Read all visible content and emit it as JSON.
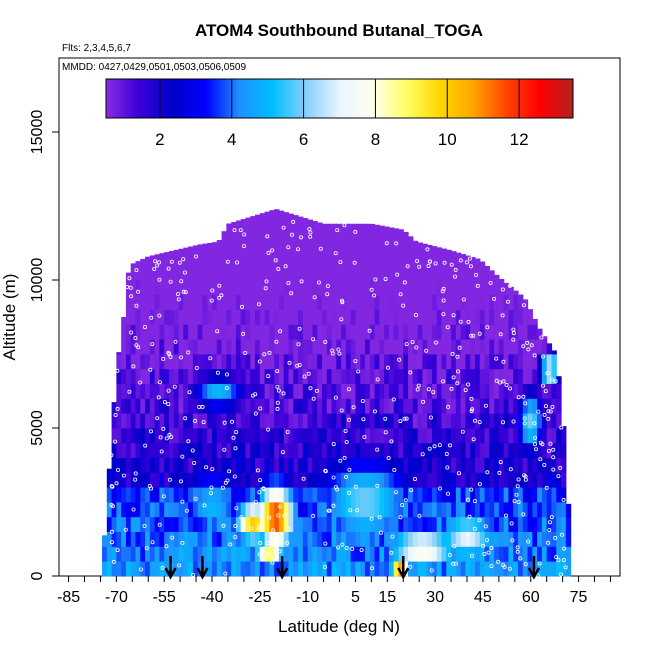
{
  "chart_data": {
    "type": "heatmap",
    "title": "ATOM4 Southbound Butanal_TOGA",
    "flights_note": "Flts: 2,3,4,5,6,7",
    "dates_note": "MMDD: 0427,0429,0501,0503,0506,0509",
    "xlabel": "Latitude (deg N)",
    "ylabel": "Altitude (m)",
    "xlim": [
      -88,
      88
    ],
    "ylim": [
      0,
      17500
    ],
    "x_ticks": [
      -85,
      -70,
      -55,
      -40,
      -25,
      -10,
      5,
      15,
      30,
      45,
      60,
      75
    ],
    "y_ticks": [
      0,
      5000,
      10000,
      15000
    ],
    "colorbar": {
      "range": [
        0.5,
        13.5
      ],
      "ticks": [
        2,
        4,
        6,
        8,
        10,
        12
      ],
      "colors": [
        "#8a2be2",
        "#3a00d8",
        "#0000c8",
        "#0000ff",
        "#1e90ff",
        "#00bfff",
        "#87cefa",
        "#e8f6ff",
        "#fffff0",
        "#ffff66",
        "#ffd700",
        "#ffa500",
        "#ff4500",
        "#ff0000",
        "#b22222"
      ]
    },
    "altitude_profile": [
      {
        "lat": -75,
        "top": 0
      },
      {
        "lat": -74,
        "top": 1000
      },
      {
        "lat": -72,
        "top": 4000
      },
      {
        "lat": -70,
        "top": 7000
      },
      {
        "lat": -68,
        "top": 8500
      },
      {
        "lat": -66,
        "top": 10500
      },
      {
        "lat": -60,
        "top": 10800
      },
      {
        "lat": -52,
        "top": 11000
      },
      {
        "lat": -44,
        "top": 11200
      },
      {
        "lat": -38,
        "top": 11300
      },
      {
        "lat": -35,
        "top": 11900
      },
      {
        "lat": -20,
        "top": 12400
      },
      {
        "lat": -5,
        "top": 11900
      },
      {
        "lat": 10,
        "top": 11900
      },
      {
        "lat": 20,
        "top": 11700
      },
      {
        "lat": 24,
        "top": 11300
      },
      {
        "lat": 35,
        "top": 11000
      },
      {
        "lat": 44,
        "top": 10700
      },
      {
        "lat": 50,
        "top": 10100
      },
      {
        "lat": 58,
        "top": 9400
      },
      {
        "lat": 63,
        "top": 8300
      },
      {
        "lat": 68,
        "top": 7500
      },
      {
        "lat": 70,
        "top": 5500
      },
      {
        "lat": 72,
        "top": 2000
      },
      {
        "lat": 73,
        "top": 0
      }
    ],
    "hotspots": [
      {
        "lat": -20,
        "alt": 2000,
        "value": 12,
        "rlat": 6,
        "ralt": 1100
      },
      {
        "lat": -27,
        "alt": 1800,
        "value": 10,
        "rlat": 6,
        "ralt": 700
      },
      {
        "lat": -22,
        "alt": 800,
        "value": 9,
        "rlat": 5,
        "ralt": 500
      },
      {
        "lat": 19,
        "alt": 200,
        "value": 11,
        "rlat": 3,
        "ralt": 350
      },
      {
        "lat": 26,
        "alt": 900,
        "value": 8,
        "rlat": 12,
        "ralt": 800
      },
      {
        "lat": 40,
        "alt": 1300,
        "value": 7,
        "rlat": 10,
        "ralt": 900
      },
      {
        "lat": 8,
        "alt": 2500,
        "value": 6,
        "rlat": 15,
        "ralt": 1500
      },
      {
        "lat": -40,
        "alt": 2400,
        "value": 5,
        "rlat": 10,
        "ralt": 1200
      },
      {
        "lat": 66,
        "alt": 7000,
        "value": 8,
        "rlat": 3,
        "ralt": 500
      },
      {
        "lat": 60,
        "alt": 5200,
        "value": 6,
        "rlat": 4,
        "ralt": 1000
      },
      {
        "lat": -38,
        "alt": 6200,
        "value": 5,
        "rlat": 8,
        "ralt": 600
      }
    ],
    "arrows_lat": [
      -53,
      -43,
      -18,
      20,
      61
    ]
  }
}
